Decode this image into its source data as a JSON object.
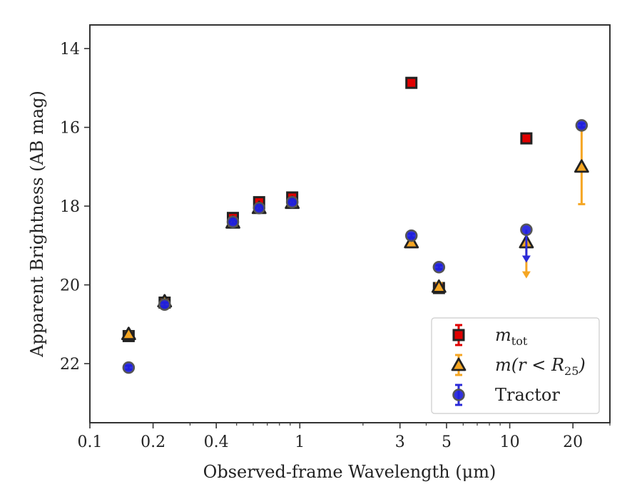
{
  "chart_data": {
    "type": "scatter",
    "title": "",
    "xlabel": "Observed-frame Wavelength (μm)",
    "ylabel": "Apparent Brightness (AB mag)",
    "xscale": "log",
    "xlim": [
      0.1,
      30
    ],
    "ylim": [
      23.5,
      13.4
    ],
    "y_inverted": true,
    "grid": false,
    "legend_position": "lower-right",
    "xticks": [
      {
        "value": 0.1,
        "label": "0.1"
      },
      {
        "value": 0.2,
        "label": "0.2"
      },
      {
        "value": 0.4,
        "label": "0.4"
      },
      {
        "value": 1,
        "label": "1"
      },
      {
        "value": 3,
        "label": "3"
      },
      {
        "value": 5,
        "label": "5"
      },
      {
        "value": 10,
        "label": "10"
      },
      {
        "value": 20,
        "label": "20"
      }
    ],
    "xminor": [
      0.3,
      0.5,
      0.6,
      0.7,
      0.8,
      0.9,
      2,
      4,
      6,
      7,
      8,
      9,
      30
    ],
    "yticks": [
      {
        "value": 14,
        "label": "14"
      },
      {
        "value": 16,
        "label": "16"
      },
      {
        "value": 18,
        "label": "18"
      },
      {
        "value": 20,
        "label": "20"
      },
      {
        "value": 22,
        "label": "22"
      }
    ],
    "series": [
      {
        "name": "m_tot",
        "legend_label": "m",
        "legend_sub": "tot",
        "marker": "square",
        "color": "#e00000",
        "edge_color": "#222222",
        "err_color": "#e00000",
        "points": [
          {
            "x": 0.153,
            "y": 21.3,
            "err": 0.05
          },
          {
            "x": 0.227,
            "y": 20.45,
            "err": 0.05
          },
          {
            "x": 0.48,
            "y": 18.3,
            "err": 0.05
          },
          {
            "x": 0.64,
            "y": 17.9,
            "err": 0.05
          },
          {
            "x": 0.92,
            "y": 17.78,
            "err": 0.05
          },
          {
            "x": 3.4,
            "y": 14.87,
            "err": 0.03
          },
          {
            "x": 4.6,
            "y": 20.08,
            "err": 0.05
          },
          {
            "x": 12.0,
            "y": 16.28,
            "err": 0.03
          }
        ]
      },
      {
        "name": "m(r < R_25)",
        "legend_label": "m(r < R",
        "legend_sub": "25",
        "legend_suffix": ")",
        "marker": "triangle",
        "color": "#f5a623",
        "edge_color": "#222222",
        "err_color": "#f5a623",
        "points": [
          {
            "x": 0.153,
            "y": 21.25,
            "err": 0.05
          },
          {
            "x": 0.227,
            "y": 20.42,
            "err": 0.05
          },
          {
            "x": 0.48,
            "y": 18.42,
            "err": 0.05
          },
          {
            "x": 0.64,
            "y": 18.05,
            "err": 0.05
          },
          {
            "x": 0.92,
            "y": 17.92,
            "err": 0.05
          },
          {
            "x": 3.4,
            "y": 18.92,
            "err": 0.05
          },
          {
            "x": 4.6,
            "y": 20.05,
            "err": 0.1
          },
          {
            "x": 12.0,
            "y": 18.92,
            "upper_limit": true,
            "arrow_to": 19.8
          },
          {
            "x": 22.0,
            "y": 17.0,
            "err": 0.95
          }
        ]
      },
      {
        "name": "Tractor",
        "legend_label": "Tractor",
        "marker": "circle",
        "color": "#1f1fdd",
        "edge_color": "#555555",
        "err_color": "#2a2ad8",
        "points": [
          {
            "x": 0.153,
            "y": 22.1,
            "err": 0.05
          },
          {
            "x": 0.227,
            "y": 20.5,
            "err": 0.05
          },
          {
            "x": 0.48,
            "y": 18.4,
            "err": 0.05
          },
          {
            "x": 0.64,
            "y": 18.05,
            "err": 0.05
          },
          {
            "x": 0.92,
            "y": 17.9,
            "err": 0.05
          },
          {
            "x": 3.4,
            "y": 18.75,
            "err": 0.05
          },
          {
            "x": 4.6,
            "y": 19.55,
            "err": 0.05
          },
          {
            "x": 12.0,
            "y": 18.6,
            "upper_limit": true,
            "arrow_to": 19.4
          },
          {
            "x": 22.0,
            "y": 15.95,
            "err": 0.05
          }
        ]
      }
    ]
  }
}
